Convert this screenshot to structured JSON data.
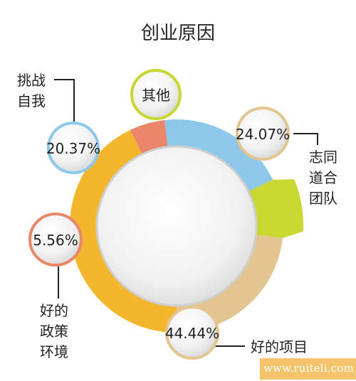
{
  "chart_data": {
    "type": "pie",
    "title": "创业原因",
    "slices": [
      {
        "label": "好的项目",
        "value": 44.44,
        "display": "44.44%",
        "color": "#f3b62c"
      },
      {
        "label": "好的政策环境",
        "value": 5.56,
        "display": "5.56%",
        "color": "#ea876b"
      },
      {
        "label": "挑战自我",
        "value": 20.37,
        "display": "20.37%",
        "color": "#8dc7ea"
      },
      {
        "label": "其他",
        "value": 9.26,
        "display": "",
        "color": "#c9d731"
      },
      {
        "label": "志同道合团队",
        "value": 24.07,
        "display": "24.07%",
        "color": "#e3c592"
      }
    ],
    "callouts": {
      "challenge": {
        "lines": [
          "挑战",
          "自我"
        ],
        "percent": "20.37%"
      },
      "other": {
        "label": "其他"
      },
      "team": {
        "lines": [
          "志同",
          "道合",
          "团队"
        ],
        "percent": "24.07%"
      },
      "policy": {
        "lines": [
          "好的",
          "政策",
          "环境"
        ],
        "percent": "5.56%"
      },
      "project": {
        "label": "好的项目",
        "percent": "44.44%"
      }
    }
  },
  "watermark": "www.ruiteli.com"
}
